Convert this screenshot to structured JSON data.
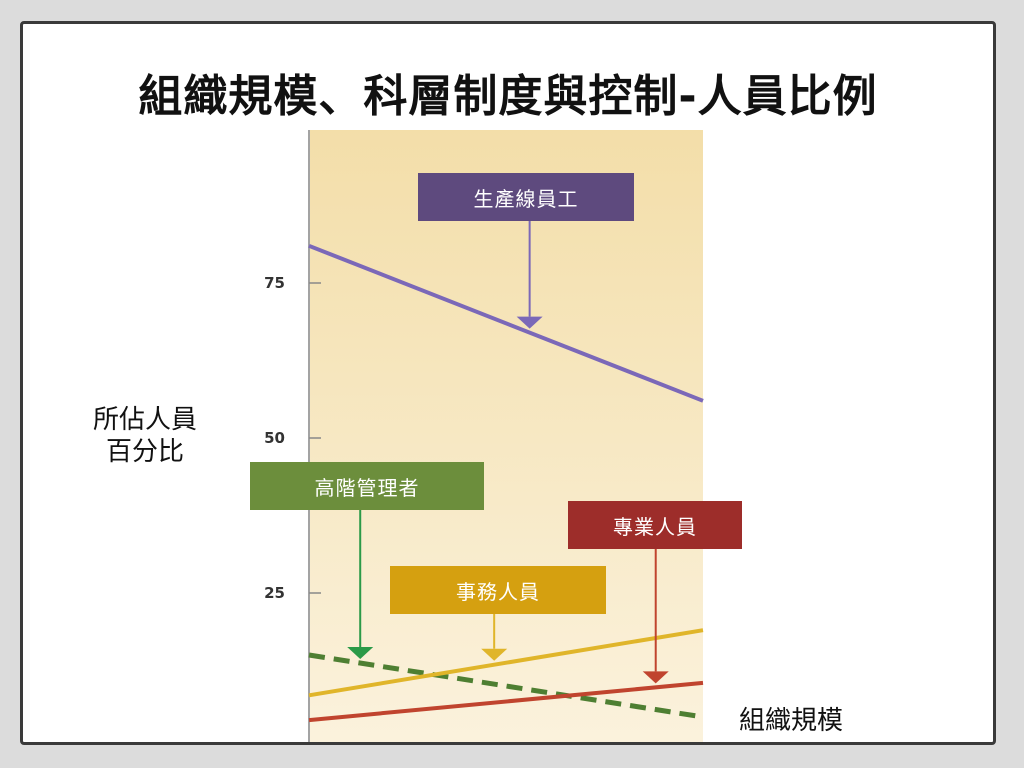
{
  "slide": {
    "title": "組織規模、科層制度與控制-人員比例",
    "y_caption_line1": "所佔人員",
    "y_caption_line2": "百分比",
    "x_caption": "組織規模"
  },
  "chart_data": {
    "type": "line",
    "title": "",
    "xlabel": "組織規模",
    "ylabel": "所佔人員百分比",
    "ylim": [
      0,
      100
    ],
    "yticks": [
      0,
      25,
      50,
      75
    ],
    "x": [
      0,
      1
    ],
    "series": [
      {
        "name": "生產線員工",
        "values": [
          81,
          56
        ],
        "color": "#7b68b8",
        "label_color": "#5e4a7e",
        "style": "solid",
        "arrow_at": 0.56
      },
      {
        "name": "高階管理者",
        "values": [
          15,
          5
        ],
        "color": "#4e7f32",
        "label_color": "#6c8e3c",
        "arrow_color": "#2b9a48",
        "style": "dashed",
        "arrow_at": 0.13
      },
      {
        "name": "事務人員",
        "values": [
          8.5,
          19
        ],
        "color": "#e0b52a",
        "label_color": "#d5a010",
        "style": "solid",
        "arrow_at": 0.47
      },
      {
        "name": "專業人員",
        "values": [
          4.5,
          10.5
        ],
        "color": "#c0442e",
        "label_color": "#9d2d2a",
        "style": "solid",
        "arrow_at": 0.88
      }
    ]
  }
}
